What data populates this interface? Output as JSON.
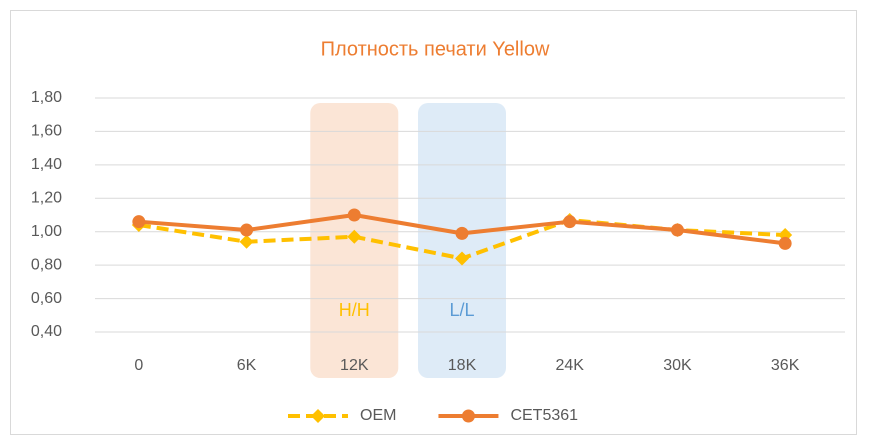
{
  "chart_data": {
    "type": "line",
    "title": "Плотность печати Yellow",
    "categories": [
      "0",
      "6K",
      "12K",
      "18K",
      "24K",
      "30K",
      "36K"
    ],
    "series": [
      {
        "name": "OEM",
        "color": "#FFC000",
        "dashed": true,
        "marker": "diamond",
        "values": [
          1.04,
          0.94,
          0.97,
          0.84,
          1.07,
          1.01,
          0.98
        ]
      },
      {
        "name": "CET5361",
        "color": "#ED7D31",
        "dashed": false,
        "marker": "circle",
        "values": [
          1.06,
          1.01,
          1.1,
          0.99,
          1.06,
          1.01,
          0.93
        ]
      }
    ],
    "annotations": [
      {
        "text": "H/H",
        "color": "#FFC000",
        "shade": "#FBE5D6"
      },
      {
        "text": "L/L",
        "color": "#5B9BD5",
        "shade": "#DEEBF7"
      }
    ],
    "ylim": [
      0.4,
      1.8
    ],
    "yticks": [
      {
        "value": 0.4,
        "label": "0,40"
      },
      {
        "value": 0.6,
        "label": "0,60"
      },
      {
        "value": 0.8,
        "label": "0,80"
      },
      {
        "value": 1.0,
        "label": "1,00"
      },
      {
        "value": 1.2,
        "label": "1,20"
      },
      {
        "value": 1.4,
        "label": "1,40"
      },
      {
        "value": 1.6,
        "label": "1,60"
      },
      {
        "value": 1.8,
        "label": "1,80"
      }
    ],
    "grid": true,
    "legend": "bottom"
  }
}
